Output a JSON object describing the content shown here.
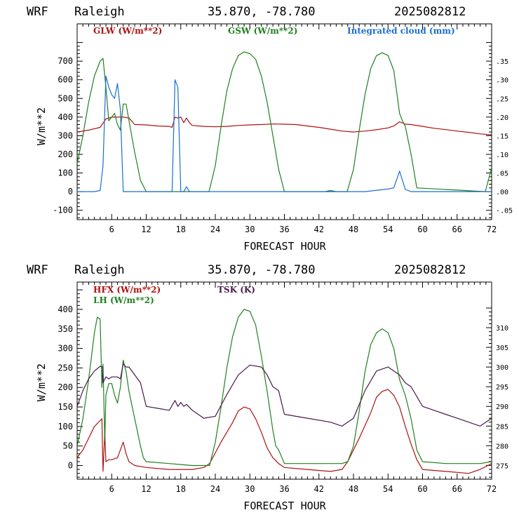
{
  "chart_data": [
    {
      "type": "line",
      "title": {
        "model": "WRF",
        "location": "Raleigh",
        "coords": "35.870, -78.780",
        "run": "2025082812"
      },
      "xlabel": "FORECAST HOUR",
      "ylabel": "W/m**2",
      "xlim": [
        0,
        72
      ],
      "xticks": [
        6,
        12,
        18,
        24,
        30,
        36,
        42,
        48,
        54,
        60,
        66,
        72
      ],
      "ylim": [
        -150,
        900
      ],
      "yticks": [
        -100,
        0,
        100,
        200,
        300,
        400,
        500,
        600,
        700
      ],
      "y2lim": [
        -0.075,
        0.45
      ],
      "y2ticks": [
        -0.05,
        0.0,
        0.05,
        0.1,
        0.15,
        0.2,
        0.25,
        0.3,
        0.35
      ],
      "y2ticklabels": [
        "-.05",
        ".00",
        ".05",
        ".10",
        ".15",
        ".20",
        ".25",
        ".30",
        ".35"
      ],
      "grid": false,
      "legend_position": "top",
      "series": [
        {
          "name": "GLW (W/m**2)",
          "axis": "left",
          "color": "#b01010",
          "x": [
            0,
            2,
            4,
            5,
            6,
            7,
            8,
            9,
            10,
            12,
            14,
            16,
            16.5,
            17,
            17.5,
            18,
            18.5,
            19,
            19.5,
            20,
            22,
            24,
            26,
            28,
            30,
            32,
            34,
            36,
            38,
            40,
            42,
            44,
            46,
            48,
            50,
            52,
            54,
            55,
            56,
            57,
            58,
            60,
            62,
            64,
            66,
            68,
            70,
            72
          ],
          "y": [
            320,
            330,
            345,
            390,
            400,
            400,
            400,
            395,
            360,
            358,
            352,
            350,
            345,
            400,
            395,
            400,
            370,
            395,
            370,
            355,
            350,
            348,
            350,
            355,
            358,
            360,
            363,
            362,
            360,
            352,
            345,
            335,
            325,
            320,
            325,
            332,
            342,
            352,
            375,
            362,
            360,
            350,
            340,
            333,
            325,
            318,
            310,
            305
          ]
        },
        {
          "name": "GSW (W/m**2)",
          "axis": "left",
          "color": "#208020",
          "x": [
            0,
            1,
            2,
            3,
            4,
            4.5,
            5,
            5.5,
            6,
            6.5,
            7,
            7.5,
            8,
            8.5,
            9,
            10,
            11,
            12,
            22.9,
            24,
            25,
            26,
            27,
            28,
            29,
            30,
            31,
            32,
            33,
            34,
            35,
            36,
            46.9,
            48,
            49,
            50,
            51,
            52,
            53,
            54,
            55,
            56,
            56.5,
            57,
            58,
            59,
            70.9,
            72
          ],
          "y": [
            150,
            300,
            480,
            620,
            700,
            715,
            560,
            380,
            400,
            420,
            360,
            330,
            470,
            470,
            380,
            210,
            60,
            0,
            0,
            140,
            350,
            540,
            660,
            730,
            750,
            740,
            710,
            620,
            480,
            300,
            120,
            0,
            0,
            120,
            330,
            520,
            660,
            730,
            745,
            730,
            650,
            420,
            380,
            350,
            200,
            20,
            0,
            130
          ]
        },
        {
          "name": "Integrated cloud (mm)",
          "axis": "right",
          "color": "#1a6fd0",
          "x": [
            0,
            3,
            4,
            4.5,
            5,
            5.5,
            6,
            6.5,
            7,
            7.5,
            8,
            9,
            16,
            16.5,
            17,
            17.5,
            18,
            18.5,
            19,
            19.5,
            20,
            43,
            44,
            45,
            50,
            54,
            55,
            56,
            57,
            58,
            72
          ],
          "y": [
            0,
            0,
            0.003,
            0.07,
            0.31,
            0.28,
            0.26,
            0.25,
            0.29,
            0.22,
            0.0,
            0.0,
            0,
            0.0,
            0.3,
            0.28,
            0.0,
            0.0,
            0.013,
            0.0,
            0.0,
            0,
            0.003,
            0.0,
            0.0,
            0.007,
            0.01,
            0.055,
            0.006,
            0.0,
            0.0
          ]
        }
      ]
    },
    {
      "type": "line",
      "title": {
        "model": "WRF",
        "location": "Raleigh",
        "coords": "35.870, -78.780",
        "run": "2025082812"
      },
      "xlabel": "FORECAST HOUR",
      "ylabel": "W/m**2",
      "xlim": [
        0,
        72
      ],
      "xticks": [
        6,
        12,
        18,
        24,
        30,
        36,
        42,
        48,
        54,
        60,
        66,
        72
      ],
      "ylim": [
        -35,
        470
      ],
      "yticks": [
        0,
        50,
        100,
        150,
        200,
        250,
        300,
        350,
        400
      ],
      "y2lim": [
        271.5,
        321.6
      ],
      "y2ticks": [
        275,
        280,
        285,
        290,
        295,
        300,
        305,
        310
      ],
      "grid": false,
      "legend_position": "top-left",
      "series": [
        {
          "name": "HFX (W/m**2)",
          "axis": "left",
          "color": "#b01010",
          "x": [
            0,
            1,
            2,
            3,
            4,
            4.3,
            4.5,
            4.8,
            5,
            5.5,
            6,
            7,
            7.5,
            8,
            8.5,
            9,
            10,
            12,
            16,
            20,
            22,
            23,
            25,
            27,
            28,
            29,
            30,
            31,
            32,
            33,
            34,
            35,
            36,
            40,
            44,
            46,
            47,
            49,
            51,
            52,
            53,
            54,
            55,
            56,
            57,
            58,
            59,
            60,
            64,
            68,
            70,
            72
          ],
          "y": [
            20,
            40,
            70,
            100,
            115,
            120,
            -15,
            85,
            10,
            15,
            15,
            20,
            40,
            60,
            30,
            10,
            0,
            -5,
            -10,
            -10,
            -5,
            5,
            60,
            110,
            140,
            150,
            145,
            120,
            85,
            45,
            20,
            5,
            -5,
            -10,
            -15,
            -10,
            10,
            70,
            135,
            175,
            190,
            195,
            180,
            150,
            100,
            55,
            15,
            -10,
            -15,
            -20,
            -10,
            5
          ]
        },
        {
          "name": "LH (W/m**2)",
          "axis": "left",
          "color": "#208020",
          "x": [
            0,
            1,
            2,
            3,
            3.5,
            4,
            4.3,
            4.5,
            4.8,
            5,
            5.5,
            6,
            6.5,
            7,
            7.5,
            8,
            8.5,
            9,
            10,
            11,
            11.5,
            12,
            16,
            20,
            23,
            24,
            25,
            26,
            27,
            28,
            29,
            30,
            31,
            32,
            33,
            34,
            34.5,
            35,
            36,
            40,
            44,
            46,
            47,
            48,
            49,
            50,
            51,
            52,
            53,
            54,
            55,
            56,
            57,
            58,
            59,
            60,
            64,
            68,
            70,
            72
          ],
          "y": [
            50,
            120,
            220,
            340,
            380,
            375,
            200,
            260,
            60,
            180,
            210,
            210,
            180,
            160,
            200,
            270,
            240,
            190,
            120,
            50,
            20,
            10,
            5,
            0,
            0,
            60,
            150,
            250,
            330,
            380,
            400,
            395,
            360,
            280,
            190,
            90,
            50,
            40,
            5,
            5,
            5,
            5,
            10,
            50,
            140,
            240,
            310,
            340,
            350,
            340,
            300,
            220,
            180,
            120,
            40,
            10,
            5,
            5,
            5,
            10
          ]
        },
        {
          "name": "TSK (K)",
          "axis": "right",
          "color": "#4a1a4a",
          "x": [
            0,
            1,
            2,
            3,
            4,
            4.4,
            4.5,
            4.8,
            5,
            5.5,
            6,
            7,
            7.5,
            8,
            8.5,
            9,
            10,
            11,
            12,
            14,
            16,
            17,
            17.5,
            18,
            18.5,
            19,
            20,
            22,
            24,
            26,
            28,
            30,
            32,
            33,
            34,
            35,
            36,
            40,
            44,
            46,
            48,
            50,
            52,
            54,
            56,
            57,
            58,
            60,
            62,
            64,
            66,
            68,
            70,
            72
          ],
          "y": [
            290,
            294,
            297,
            299,
            300.2,
            300,
            296,
            297,
            297.5,
            297,
            297.5,
            297.5,
            297,
            300.8,
            300,
            300,
            298,
            296,
            290,
            289.5,
            289,
            291.5,
            290,
            291,
            290,
            290.5,
            289,
            287,
            287.5,
            293,
            298,
            300.5,
            300,
            298,
            295,
            294,
            288,
            287,
            286,
            285,
            287,
            294,
            299,
            300,
            298,
            296,
            295,
            290,
            289,
            288,
            287,
            286,
            285,
            287
          ]
        }
      ]
    }
  ],
  "colors": {
    "glw": "#b01010",
    "gsw": "#208020",
    "cloud": "#1a6fd0",
    "hfx": "#b01010",
    "lh": "#208020",
    "tsk": "#4a1a4a"
  }
}
